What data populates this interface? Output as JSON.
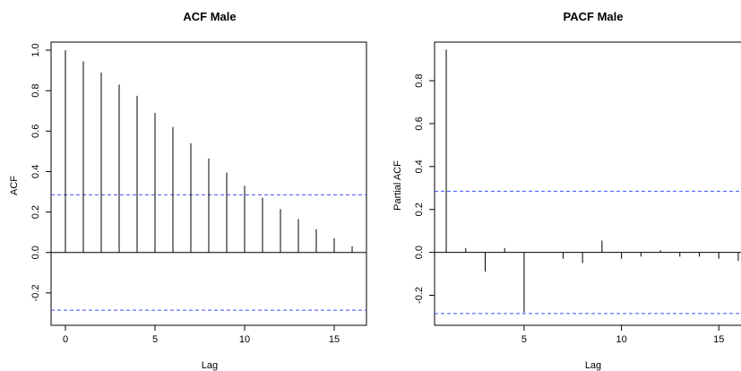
{
  "chart_data": [
    {
      "type": "bar",
      "title": "ACF Male",
      "xlabel": "Lag",
      "ylabel": "ACF",
      "xlim": [
        -0.8,
        16.8
      ],
      "ylim": [
        -0.36,
        1.04
      ],
      "x_ticks": [
        "0",
        "5",
        "10",
        "15"
      ],
      "y_ticks": [
        "-0.2",
        "0.0",
        "0.2",
        "0.4",
        "0.6",
        "0.8",
        "1.0"
      ],
      "x": [
        0,
        1,
        2,
        3,
        4,
        5,
        6,
        7,
        8,
        9,
        10,
        11,
        12,
        13,
        14,
        15,
        16
      ],
      "values": [
        1.0,
        0.945,
        0.89,
        0.83,
        0.775,
        0.69,
        0.62,
        0.54,
        0.465,
        0.395,
        0.33,
        0.27,
        0.215,
        0.165,
        0.115,
        0.07,
        0.03
      ],
      "confidence_bound": 0.285,
      "zero_line": true,
      "colors": {
        "lines": "#000000",
        "bounds": "#3f51f5"
      }
    },
    {
      "type": "bar",
      "title": "PACF Male",
      "xlabel": "Lag",
      "ylabel": "Partial ACF",
      "xlim": [
        0.4,
        16.6
      ],
      "ylim": [
        -0.34,
        0.98
      ],
      "x_ticks": [
        "5",
        "10",
        "15"
      ],
      "y_ticks": [
        "-0.2",
        "0.0",
        "0.2",
        "0.4",
        "0.6",
        "0.8"
      ],
      "x": [
        1,
        2,
        3,
        4,
        5,
        6,
        7,
        8,
        9,
        10,
        11,
        12,
        13,
        14,
        15,
        16
      ],
      "values": [
        0.945,
        0.02,
        -0.09,
        0.02,
        -0.28,
        0.0,
        -0.03,
        -0.05,
        0.055,
        -0.03,
        -0.02,
        0.01,
        -0.02,
        -0.02,
        -0.03,
        -0.04
      ],
      "confidence_bound": 0.285,
      "zero_line": true,
      "colors": {
        "lines": "#000000",
        "bounds": "#3f51f5"
      }
    }
  ]
}
